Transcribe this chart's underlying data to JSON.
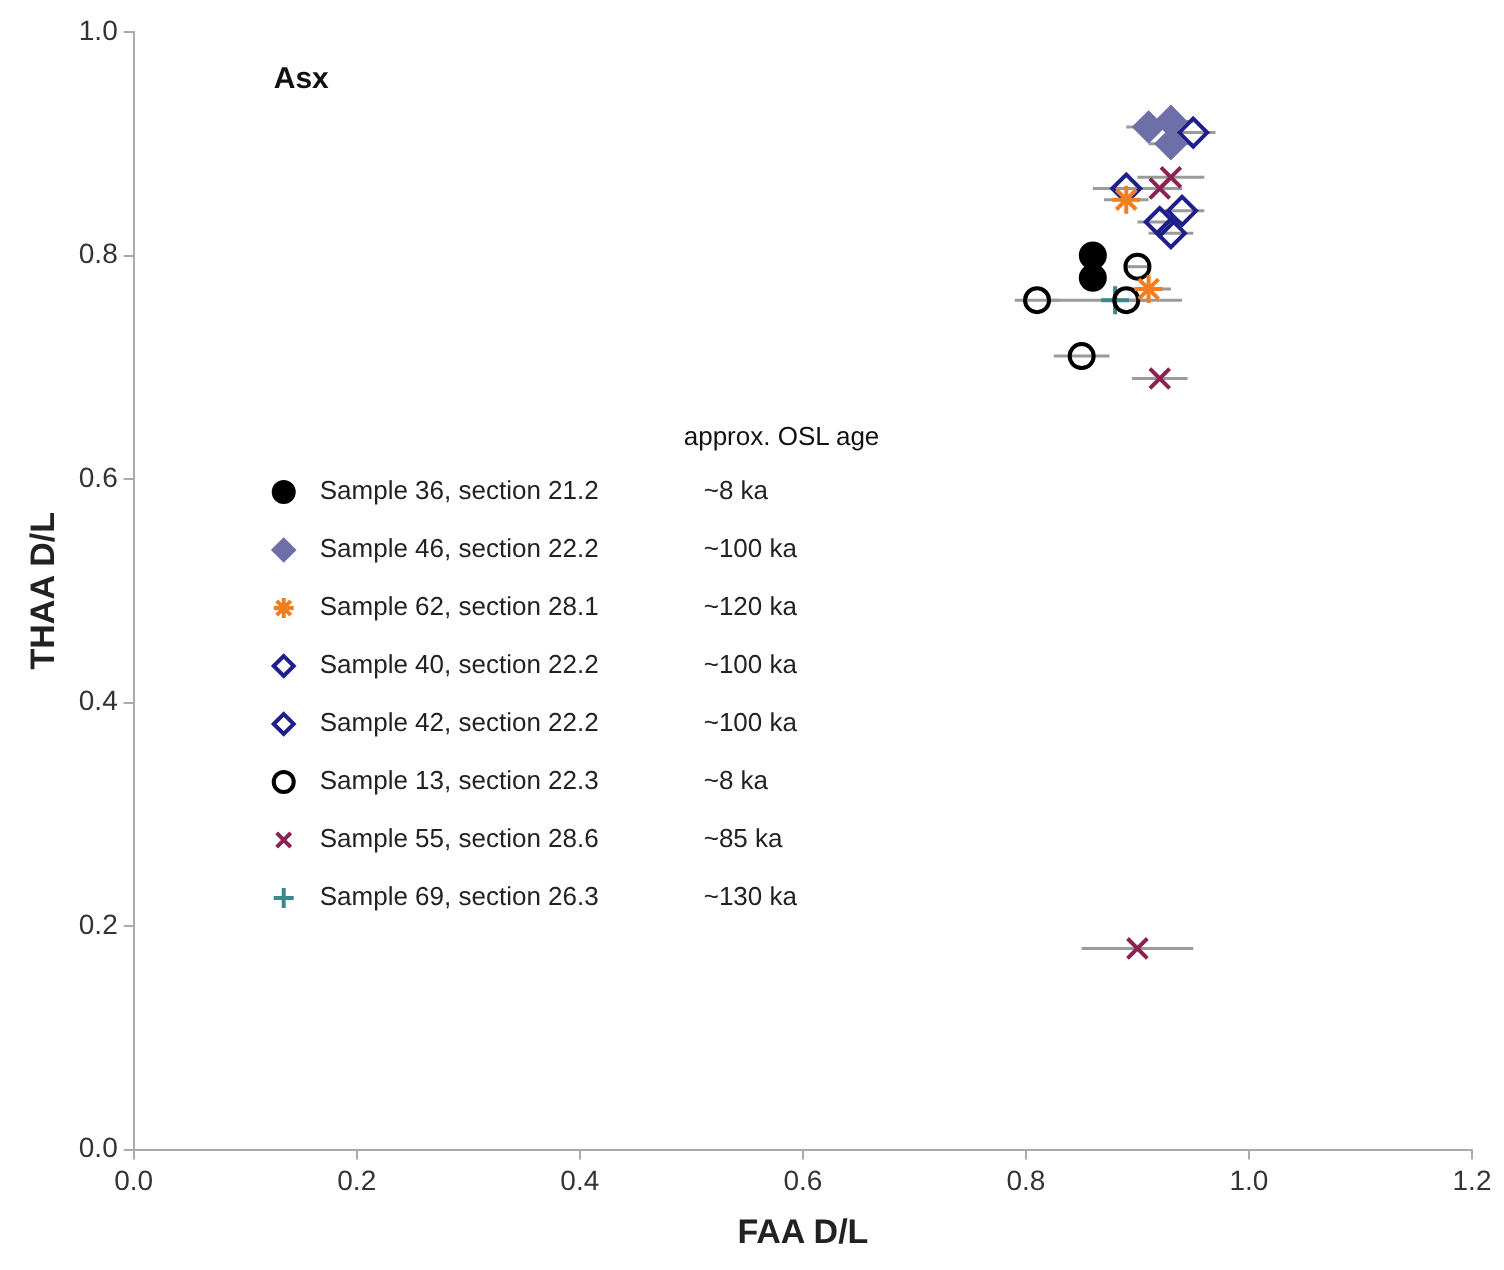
{
  "chart_data": {
    "type": "scatter",
    "xlabel": "FAA D/L",
    "ylabel": "THAA D/L",
    "xlim": [
      0,
      1.2
    ],
    "xticks": [
      {
        "value": 0,
        "label": "0.0"
      },
      {
        "value": 0.2,
        "label": "0.2"
      },
      {
        "value": 0.4,
        "label": "0.4"
      },
      {
        "value": 0.6,
        "label": "0.6"
      },
      {
        "value": 0.8,
        "label": "0.8"
      },
      {
        "value": 1,
        "label": "1.0"
      },
      {
        "value": 1.2,
        "label": "1.2"
      }
    ],
    "ylim": [
      0,
      1
    ],
    "yticks": [
      {
        "value": 0,
        "label": "0.0"
      },
      {
        "value": 0.2,
        "label": "0.2"
      },
      {
        "value": 0.4,
        "label": "0.4"
      },
      {
        "value": 0.6,
        "label": "0.6"
      },
      {
        "value": 0.8,
        "label": "0.8"
      },
      {
        "value": 1,
        "label": "1.0"
      }
    ],
    "grid": false,
    "legend": "left",
    "annotations": [
      "Asx",
      "approx. OSL age",
      "~8 ka",
      "~100 ka",
      "~120 ka",
      "~100 ka",
      "~100 ka",
      "~8 ka",
      "~85 ka",
      "~130 ka"
    ],
    "series": [
      {
        "name": "Sample 36, section 21.2",
        "color": "#000000",
        "marker": "circle",
        "x": [
          0.86,
          0.86
        ],
        "values": [
          0.8,
          0.78
        ]
      },
      {
        "name": "Sample 46, section 22.2",
        "color": "#6e6ea8",
        "marker": "diamond",
        "x": [
          0.91,
          0.93,
          0.93
        ],
        "values": [
          0.915,
          0.92,
          0.9
        ],
        "xerrors": [
          0.02,
          0.02,
          0.02
        ]
      },
      {
        "name": "Sample 62, section 28.1",
        "color": "#f07f20",
        "marker": "cross",
        "x": [
          0.89,
          0.91
        ],
        "values": [
          0.85,
          0.77
        ],
        "xerrors": [
          0.02,
          0.02
        ]
      },
      {
        "name": "Sample 40, section 22.2",
        "color": "#1f1f8c",
        "marker": "diamond-open",
        "x": [
          0.95,
          0.89
        ],
        "values": [
          0.91,
          0.86
        ],
        "xerrors": [
          0.02,
          0.03
        ]
      },
      {
        "name": "Sample 42, section 22.2",
        "color": "#1f1f8c",
        "marker": "diamond-open",
        "x": [
          0.94,
          0.92,
          0.93
        ],
        "values": [
          0.84,
          0.83,
          0.82
        ],
        "xerrors": [
          0.02,
          0.02,
          0.02
        ]
      },
      {
        "name": "Sample 13, section 22.3",
        "color": "#000000",
        "marker": "circle-open",
        "x": [
          0.9,
          0.81,
          0.89,
          0.85
        ],
        "values": [
          0.79,
          0.76,
          0.76,
          0.71
        ],
        "xerrors": [
          0.01,
          0.02,
          0.02,
          0.025
        ]
      },
      {
        "name": "Sample 55, section 28.6",
        "color": "#8b2252",
        "marker": "x",
        "x": [
          0.93,
          0.92,
          0.92,
          0.9
        ],
        "values": [
          0.87,
          0.86,
          0.69,
          0.18
        ],
        "xerrors": [
          0.03,
          0.02,
          0.025,
          0.05
        ]
      },
      {
        "name": "Sample 69, section 26.3",
        "color": "#3a8a8c",
        "marker": "plus",
        "x": [
          0.88
        ],
        "values": [
          0.76
        ],
        "xerrors": [
          0.06
        ]
      }
    ]
  }
}
